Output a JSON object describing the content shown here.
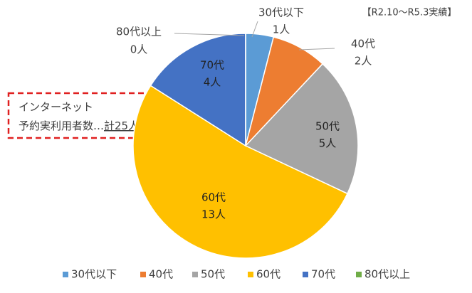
{
  "chart_data": {
    "type": "pie",
    "annotation": "【R2.10～R5.3実績】",
    "note_lines": [
      "インターネット",
      "予約実利用者数…",
      "計25人"
    ],
    "categories": [
      "30代以下",
      "40代",
      "50代",
      "60代",
      "70代",
      "80代以上"
    ],
    "values": [
      1,
      2,
      5,
      13,
      4,
      0
    ],
    "value_labels": [
      "1人",
      "2人",
      "5人",
      "13人",
      "4人",
      "0人"
    ],
    "colors": [
      "#5b9bd5",
      "#ed7d31",
      "#a5a5a5",
      "#ffc000",
      "#4472c4",
      "#70ad47"
    ],
    "legend": "bottom"
  }
}
